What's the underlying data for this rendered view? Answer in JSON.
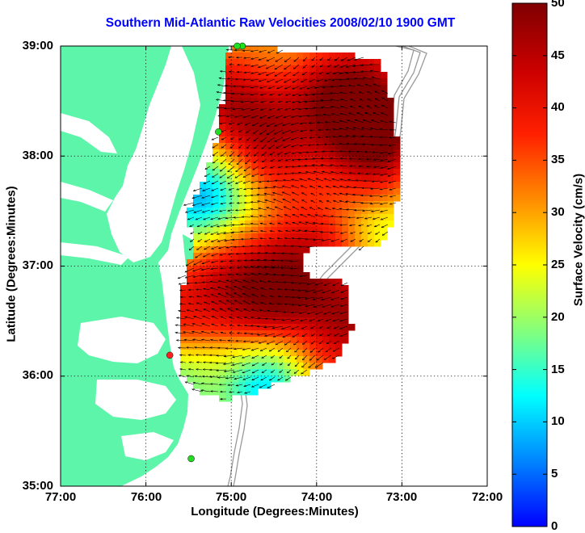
{
  "title": "Southern Mid-Atlantic Raw Velocities 2008/02/10 1900 GMT",
  "axes": {
    "xlabel": "Longitude (Degrees:Minutes)",
    "ylabel": "Latitude (Degrees:Minutes)",
    "x_ticks": [
      "77:00",
      "76:00",
      "75:00",
      "74:00",
      "73:00",
      "72:00"
    ],
    "y_ticks": [
      "39:00",
      "38:00",
      "37:00",
      "36:00",
      "35:00"
    ],
    "grid": "dotted"
  },
  "colorbar": {
    "label": "Surface Velocity (cm/s)",
    "ticks": [
      "50",
      "45",
      "40",
      "35",
      "30",
      "25",
      "20",
      "15",
      "10",
      "5",
      "0"
    ],
    "range": [
      0,
      50
    ],
    "colormap": "jet"
  },
  "colors": {
    "land": "#5cf5a9",
    "title": "#0000ff",
    "bathymetry": "#999999",
    "station_on": "#22dd22",
    "station_off": "#ff2020"
  },
  "stations": [
    {
      "lon": -74.87,
      "lat": 39.0,
      "status": "on"
    },
    {
      "lon": -74.93,
      "lat": 39.0,
      "status": "on"
    },
    {
      "lon": -75.15,
      "lat": 38.22,
      "status": "on"
    },
    {
      "lon": -75.72,
      "lat": 36.19,
      "status": "off"
    },
    {
      "lon": -75.47,
      "lat": 35.25,
      "status": "on"
    }
  ]
}
